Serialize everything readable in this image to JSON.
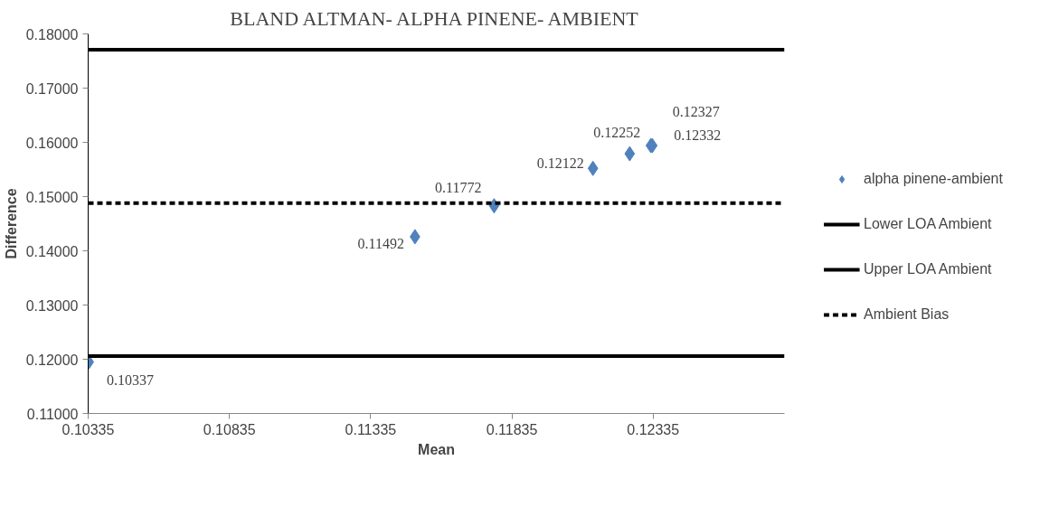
{
  "chart_data": {
    "type": "scatter",
    "title": "BLAND ALTMAN- ALPHA PINENE- AMBIENT",
    "xlabel": "Mean",
    "ylabel": "Difference",
    "x": [
      0.10337,
      0.11492,
      0.11772,
      0.12122,
      0.12252,
      0.12327,
      0.12332
    ],
    "series": [
      {
        "name": "alpha pinene-ambient",
        "color": "#4f81bd",
        "values": [
          0.1195,
          0.1426,
          0.1483,
          0.1552,
          0.1579,
          0.1594,
          0.1594
        ]
      }
    ],
    "annotations": [
      {
        "text": "0.10337",
        "x": 0.10337,
        "y": 0.1195
      },
      {
        "text": "0.11492",
        "x": 0.11492,
        "y": 0.1426
      },
      {
        "text": "0.11772",
        "x": 0.11772,
        "y": 0.1483
      },
      {
        "text": "0.12122",
        "x": 0.12122,
        "y": 0.1552
      },
      {
        "text": "0.12252",
        "x": 0.12252,
        "y": 0.1579
      },
      {
        "text": "0.12327",
        "x": 0.12327,
        "y": 0.1594
      },
      {
        "text": "0.12332",
        "x": 0.12332,
        "y": 0.1594
      }
    ],
    "ref_lines": [
      {
        "axis": "y",
        "value": 0.1206,
        "label": "Lower LOA Ambient",
        "color": "#000000",
        "line_style": "solid"
      },
      {
        "axis": "y",
        "value": 0.1771,
        "label": "Upper LOA Ambient",
        "color": "#000000",
        "line_style": "solid"
      },
      {
        "axis": "y",
        "value": 0.1488,
        "label": "Ambient Bias",
        "color": "#000000",
        "line_style": "dashed"
      }
    ],
    "xlim": [
      0.10335,
      0.128
    ],
    "xticks": [
      0.10335,
      0.10835,
      0.11335,
      0.11835,
      0.12335
    ],
    "ylim": [
      0.11,
      0.18
    ],
    "yticks": [
      {
        "value": 0.11,
        "label": "0.11000"
      },
      {
        "value": 0.12,
        "label": "0.12000"
      },
      {
        "value": 0.13,
        "label": "0.13000"
      },
      {
        "value": 0.14,
        "label": "0.14000"
      },
      {
        "value": 0.15,
        "label": "0.15000"
      },
      {
        "value": 0.16,
        "label": "0.16000"
      },
      {
        "value": 0.17,
        "label": "0.17000"
      },
      {
        "value": 0.18,
        "label": "0.18000"
      }
    ],
    "grid": false,
    "legend": "right",
    "marker": "diamond"
  }
}
